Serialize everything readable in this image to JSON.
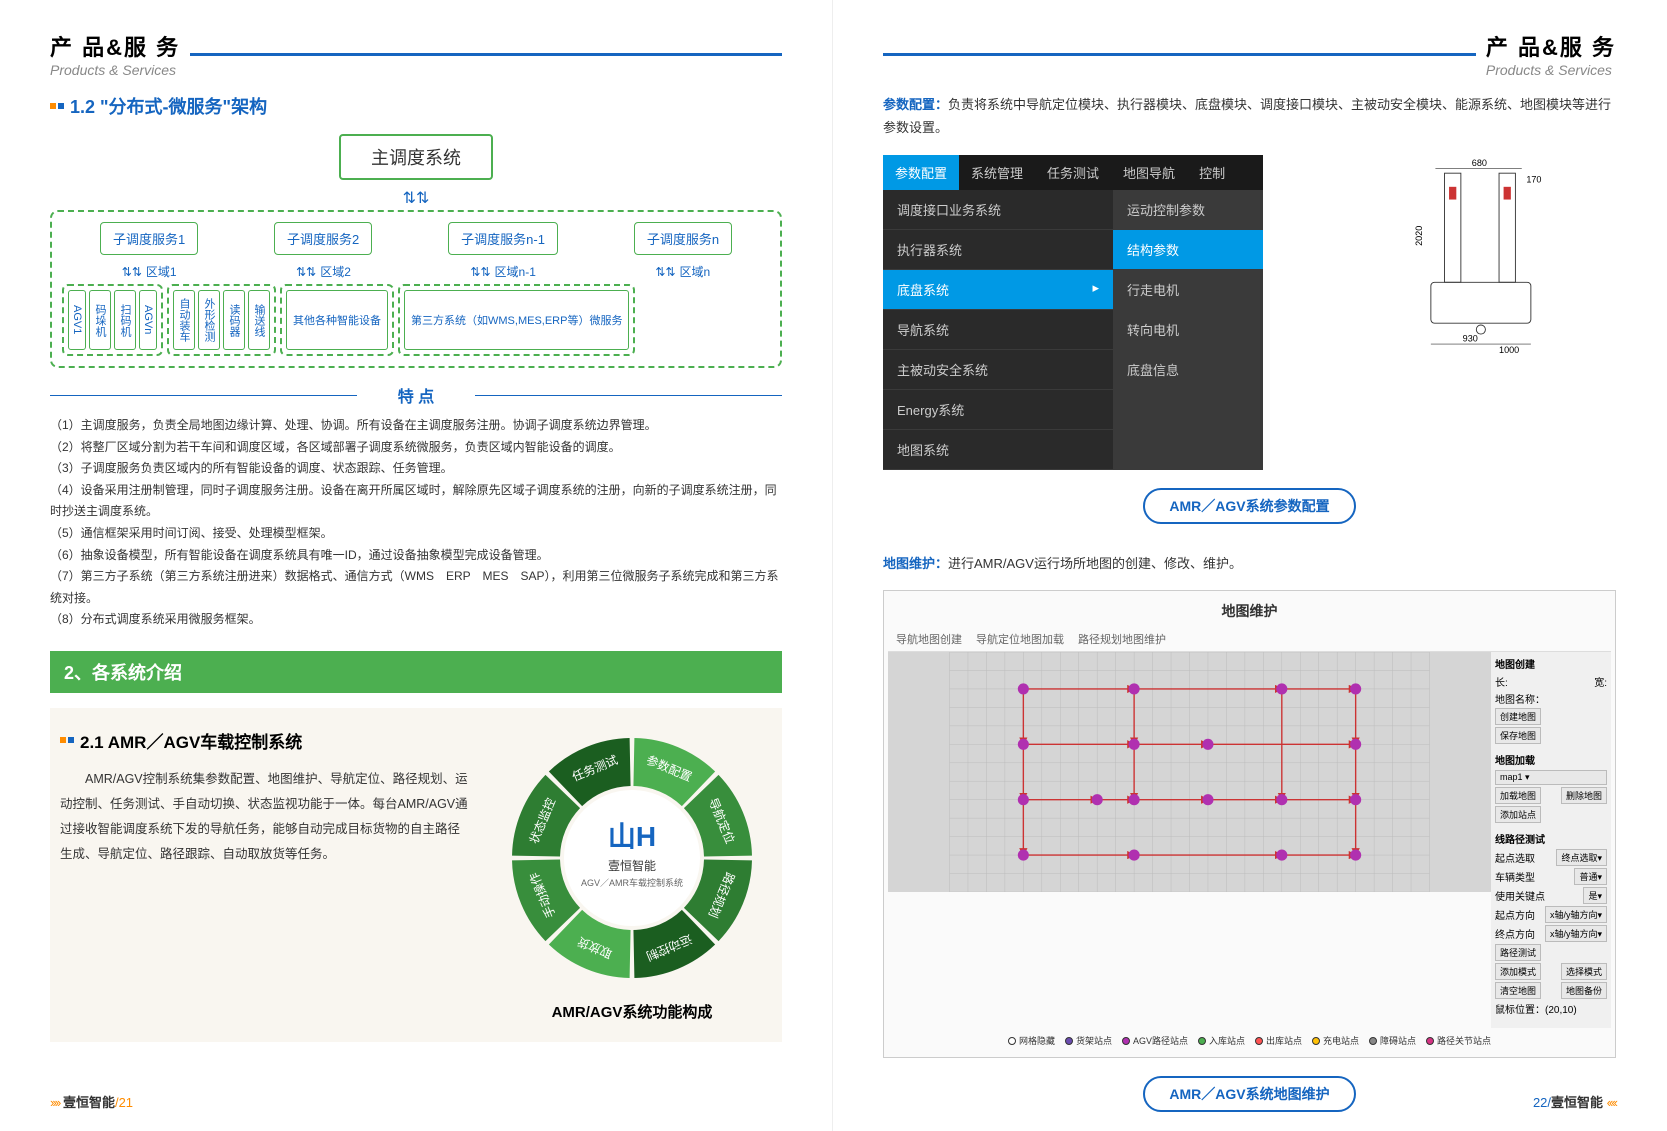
{
  "header": {
    "title_cn": "产 品&服 务",
    "title_en": "Products & Services"
  },
  "left": {
    "section1_title": "1.2 \"分布式-微服务\"架构",
    "main_dispatch": "主调度系统",
    "sub_services": [
      "子调度服务1",
      "子调度服务2",
      "子调度服务n-1",
      "子调度服务n"
    ],
    "regions": [
      "区域1",
      "区域2",
      "区域n-1",
      "区域n"
    ],
    "group1": [
      "AGV1",
      "码垛机",
      "扫码机",
      "AGVn"
    ],
    "group2": [
      "自动装车",
      "外形检测",
      "读码器",
      "输送线"
    ],
    "group3": "其他各种智能设备",
    "group4": "第三方系统（如WMS,MES,ERP等）微服务",
    "features_title": "特 点",
    "features": [
      "（1）主调度服务，负责全局地图边缘计算、处理、协调。所有设备在主调度服务注册。协调子调度系统边界管理。",
      "（2）将整厂区域分割为若干车间和调度区域，各区域部署子调度系统微服务，负责区域内智能设备的调度。",
      "（3）子调度服务负责区域内的所有智能设备的调度、状态跟踪、任务管理。",
      "（4）设备采用注册制管理，同时子调度服务注册。设备在离开所属区域时，解除原先区域子调度系统的注册，向新的子调度系统注册，同时抄送主调度系统。",
      "（5）通信框架采用时间订阅、接受、处理模型框架。",
      "（6）抽象设备模型，所有智能设备在调度系统具有唯一ID，通过设备抽象模型完成设备管理。",
      "（7）第三方子系统（第三方系统注册进来）数据格式、通信方式（WMS　ERP　MES　SAP），利用第三位微服务子系统完成和第三方系统对接。",
      "（8）分布式调度系统采用微服务框架。"
    ],
    "banner": "2、各系统介绍",
    "section21_title": "2.1 AMR／AGV车载控制系统",
    "section21_body": "AMR/AGV控制系统集参数配置、地图维护、导航定位、路径规划、运动控制、任务测试、手自动切换、状态监视功能于一体。每台AMR/AGV通过接收智能调度系统下发的导航任务，能够自动完成目标货物的自主路径生成、导航定位、路径跟踪、自动取放货等任务。",
    "circle_center_brand": "壹恒智能",
    "circle_center_sub": "AGV／AMR车载控制系统",
    "circle_segments": [
      "参数配置",
      "导航定位",
      "路径规划",
      "运动控制",
      "取放货",
      "手动操作",
      "状态监控",
      "任务测试"
    ],
    "circle_colors": [
      "#4caf50",
      "#388e3c",
      "#2e7d32",
      "#1b5e20",
      "#4caf50",
      "#388e3c",
      "#2e7d32",
      "#1b5e20"
    ],
    "circle_caption": "AMR/AGV系统功能构成",
    "footer_brand": "壹恒智能",
    "footer_page": "/21"
  },
  "right": {
    "param_label": "参数配置：",
    "param_desc": "负责将系统中导航定位模块、执行器模块、底盘模块、调度接口模块、主被动安全模块、能源系统、地图模块等进行参数设置。",
    "menu_tabs": [
      "参数配置",
      "系统管理",
      "任务测试",
      "地图导航",
      "控制"
    ],
    "menu_items": [
      "调度接口业务系统",
      "执行器系统",
      "底盘系统",
      "导航系统",
      "主被动安全系统",
      "Energy系统",
      "地图系统"
    ],
    "submenu_items": [
      "运动控制参数",
      "结构参数",
      "行走电机",
      "转向电机",
      "底盘信息"
    ],
    "robot_dims": {
      "width": "680",
      "height": "170",
      "side": "2020",
      "base_w": "930",
      "base_d": "1000"
    },
    "caption1": "AMR／AGV系统参数配置",
    "map_label": "地图维护：",
    "map_desc": "进行AMR/AGV运行场所地图的创建、修改、维护。",
    "map_title": "地图维护",
    "map_tabs": [
      "导航地图创建",
      "导航定位地图加载",
      "路径规划地图维护"
    ],
    "map_nodes": [
      [
        80,
        40
      ],
      [
        200,
        40
      ],
      [
        360,
        40
      ],
      [
        440,
        40
      ],
      [
        80,
        100
      ],
      [
        200,
        100
      ],
      [
        280,
        100
      ],
      [
        440,
        100
      ],
      [
        80,
        160
      ],
      [
        160,
        160
      ],
      [
        200,
        160
      ],
      [
        280,
        160
      ],
      [
        360,
        160
      ],
      [
        440,
        160
      ],
      [
        80,
        220
      ],
      [
        200,
        220
      ],
      [
        360,
        220
      ],
      [
        440,
        220
      ]
    ],
    "map_node_color": "#b030b0",
    "map_edge_color": "#cc3333",
    "sidebar": {
      "create_title": "地图创建",
      "create_rows": [
        "长:",
        "宽:"
      ],
      "map_name_label": "地图名称：",
      "create_btns": [
        "创建地图",
        "保存地图"
      ],
      "load_title": "地图加载",
      "map_select": "map1",
      "load_btns": [
        "加载地图",
        "删除地图"
      ],
      "add_btn": "添加站点",
      "path_title": "线路径测试",
      "path_rows": [
        [
          "起点选取",
          "终点选取"
        ],
        [
          "车辆类型",
          "普通"
        ],
        [
          "使用关键点",
          "是"
        ],
        [
          "起点方向",
          "x轴/y轴方向"
        ],
        [
          "终点方向",
          "x轴/y轴方向"
        ]
      ],
      "path_btns": [
        "路径测试",
        ""
      ],
      "path_btns2": [
        "清空地图",
        "地图备份"
      ],
      "mouse_pos_label": "鼠标位置：",
      "mouse_pos": "(20,10)",
      "mode_btns": [
        "添加模式",
        "选择模式"
      ]
    },
    "legend": [
      {
        "label": "网格隐藏",
        "color": "#ffffff"
      },
      {
        "label": "货架站点",
        "color": "#6a4caf"
      },
      {
        "label": "AGV路径站点",
        "color": "#b030b0"
      },
      {
        "label": "入库站点",
        "color": "#4caf50"
      },
      {
        "label": "出库站点",
        "color": "#ff5252"
      },
      {
        "label": "充电站点",
        "color": "#ffc107"
      },
      {
        "label": "障碍站点",
        "color": "#888888"
      },
      {
        "label": "路径关节站点",
        "color": "#d63384"
      }
    ],
    "caption2": "AMR／AGV系统地图维护",
    "footer_page": "22/",
    "footer_brand": "壹恒智能"
  }
}
